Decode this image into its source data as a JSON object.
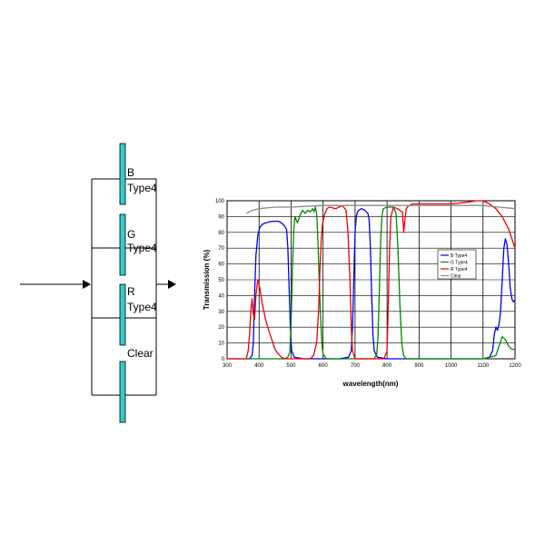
{
  "diagram": {
    "filters": [
      {
        "name": "B",
        "type": "Type4",
        "color": "#33cccc"
      },
      {
        "name": "G",
        "type": "Type4",
        "color": "#33cccc"
      },
      {
        "name": "R",
        "type": "Type4",
        "color": "#33cccc"
      },
      {
        "name": "Clear",
        "type": "",
        "color": "#33cccc"
      }
    ]
  },
  "chart_data": {
    "type": "line",
    "title": "",
    "xlabel": "wavelength(nm)",
    "ylabel": "Transmission (%)",
    "xlim": [
      300,
      1200
    ],
    "ylim": [
      0,
      100
    ],
    "xticks": [
      300,
      400,
      500,
      600,
      700,
      800,
      900,
      1000,
      1100,
      1200
    ],
    "yticks": [
      0,
      10,
      20,
      30,
      40,
      50,
      60,
      70,
      80,
      90,
      100
    ],
    "grid": true,
    "legend_position": "right",
    "series": [
      {
        "name": "B Type4",
        "color": "#0000ee",
        "x": [
          360,
          370,
          378,
          382,
          386,
          390,
          396,
          402,
          410,
          420,
          440,
          460,
          470,
          480,
          486,
          490,
          494,
          498,
          502,
          510,
          540,
          600,
          650,
          680,
          688,
          692,
          696,
          700,
          704,
          708,
          712,
          720,
          730,
          740,
          744,
          748,
          752,
          756,
          760,
          770,
          800,
          900,
          1000,
          1100,
          1120,
          1130,
          1135,
          1140,
          1145,
          1150,
          1155,
          1160,
          1165,
          1170,
          1175,
          1180,
          1185,
          1190,
          1195,
          1200
        ],
        "y": [
          0,
          0,
          2,
          10,
          40,
          65,
          78,
          83,
          85,
          86,
          87,
          87,
          86,
          84,
          82,
          70,
          45,
          20,
          5,
          1,
          0,
          0,
          0,
          1,
          5,
          20,
          50,
          80,
          90,
          93,
          94,
          95,
          94,
          92,
          88,
          70,
          40,
          15,
          5,
          1,
          0,
          0,
          0,
          0,
          1,
          5,
          15,
          20,
          18,
          22,
          30,
          50,
          70,
          76,
          72,
          60,
          45,
          38,
          36,
          37
        ]
      },
      {
        "name": "G Type4",
        "color": "#008800",
        "x": [
          300,
          480,
          490,
          496,
          500,
          504,
          508,
          512,
          516,
          520,
          528,
          536,
          544,
          552,
          560,
          568,
          572,
          576,
          580,
          584,
          588,
          592,
          596,
          600,
          610,
          700,
          760,
          768,
          772,
          776,
          780,
          784,
          788,
          800,
          820,
          828,
          834,
          840,
          846,
          852,
          860,
          900,
          1000,
          1100,
          1140,
          1150,
          1160,
          1170,
          1180,
          1190,
          1200
        ],
        "y": [
          0,
          0,
          1,
          4,
          20,
          55,
          80,
          90,
          88,
          86,
          91,
          94,
          92,
          94,
          93,
          95,
          93,
          96,
          92,
          75,
          50,
          28,
          10,
          3,
          0,
          0,
          0,
          3,
          15,
          45,
          75,
          90,
          95,
          96,
          96,
          92,
          70,
          35,
          10,
          2,
          0,
          0,
          0,
          0,
          2,
          8,
          14,
          12,
          8,
          6,
          6
        ]
      },
      {
        "name": "R Type4",
        "color": "#ee0000",
        "x": [
          300,
          360,
          366,
          370,
          374,
          378,
          382,
          386,
          390,
          396,
          402,
          410,
          420,
          430,
          440,
          450,
          460,
          470,
          480,
          500,
          560,
          570,
          580,
          586,
          590,
          594,
          598,
          604,
          612,
          620,
          640,
          660,
          672,
          678,
          684,
          688,
          692,
          700,
          740,
          790,
          800,
          804,
          808,
          812,
          820,
          832,
          840,
          848,
          852,
          856,
          860,
          868,
          880,
          900,
          950,
          1000,
          1050,
          1080,
          1100,
          1120,
          1140,
          1160,
          1180,
          1200
        ],
        "y": [
          0,
          0,
          5,
          15,
          30,
          38,
          28,
          25,
          40,
          50,
          45,
          35,
          25,
          18,
          12,
          6,
          3,
          1,
          0,
          0,
          0,
          2,
          10,
          30,
          55,
          75,
          85,
          91,
          95,
          96,
          95,
          97,
          94,
          80,
          50,
          20,
          5,
          0,
          0,
          0,
          5,
          35,
          70,
          90,
          96,
          95,
          94,
          93,
          80,
          88,
          95,
          97,
          98,
          98,
          98,
          98,
          99,
          100,
          100,
          98,
          95,
          90,
          82,
          70
        ]
      },
      {
        "name": "Clear",
        "color": "#888888",
        "x": [
          360,
          380,
          400,
          450,
          500,
          600,
          700,
          800,
          900,
          1000,
          1100,
          1150,
          1200
        ],
        "y": [
          92,
          94,
          95,
          96,
          96,
          97,
          97,
          97,
          97,
          97,
          97,
          96,
          95
        ]
      }
    ]
  }
}
